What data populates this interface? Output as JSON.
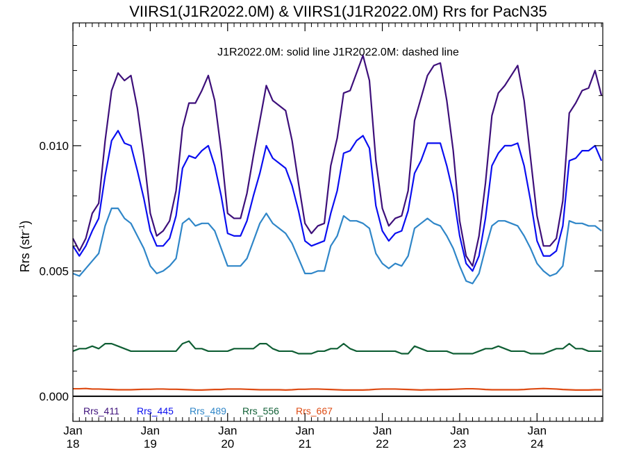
{
  "chart_data": {
    "type": "line",
    "title": "VIIRS1(J1R2022.0M) & VIIRS1(J1R2022.0M)  Rrs for PacN35",
    "subtitle": "J1R2022.0M: solid line   J1R2022.0M: dashed line",
    "ylabel_main": "Rrs (str",
    "ylabel_sup": "-1",
    "ylabel_close": ")",
    "xlabel": "",
    "x_domain": [
      2018.0,
      2024.85
    ],
    "ylim": [
      -0.001,
      0.0149
    ],
    "y_ticks": [
      {
        "value": 0.0,
        "label": "0.000"
      },
      {
        "value": 0.005,
        "label": "0.005"
      },
      {
        "value": 0.01,
        "label": "0.010"
      }
    ],
    "y_minor_step": 0.001,
    "x_ticks": [
      {
        "value": 2018,
        "month": "Jan",
        "year": "18"
      },
      {
        "value": 2019,
        "month": "Jan",
        "year": "19"
      },
      {
        "value": 2020,
        "month": "Jan",
        "year": "20"
      },
      {
        "value": 2021,
        "month": "Jan",
        "year": "21"
      },
      {
        "value": 2022,
        "month": "Jan",
        "year": "22"
      },
      {
        "value": 2023,
        "month": "Jan",
        "year": "23"
      },
      {
        "value": 2024,
        "month": "Jan",
        "year": "24"
      }
    ],
    "x_minor_step_months": 1,
    "zero_line": true,
    "grid": false,
    "legend_position": "bottom-left",
    "x_start": "2018-01",
    "x_step": "1 month",
    "series": [
      {
        "name": "Rrs_411",
        "color": "#3d0f7a",
        "values": [
          0.0063,
          0.0058,
          0.0063,
          0.0073,
          0.0077,
          0.0102,
          0.0122,
          0.0129,
          0.0126,
          0.0128,
          0.0115,
          0.0096,
          0.0073,
          0.0064,
          0.0066,
          0.007,
          0.0082,
          0.0107,
          0.0117,
          0.0117,
          0.0122,
          0.0128,
          0.0118,
          0.0098,
          0.0073,
          0.0071,
          0.0071,
          0.0081,
          0.0096,
          0.011,
          0.0124,
          0.0118,
          0.0116,
          0.0114,
          0.0102,
          0.0085,
          0.0069,
          0.0065,
          0.0068,
          0.0069,
          0.0092,
          0.0103,
          0.0121,
          0.0122,
          0.0129,
          0.0136,
          0.0126,
          0.0094,
          0.0075,
          0.0068,
          0.0071,
          0.0072,
          0.0082,
          0.011,
          0.0119,
          0.0128,
          0.0132,
          0.0133,
          0.0118,
          0.0098,
          0.007,
          0.0056,
          0.0052,
          0.0064,
          0.0085,
          0.0112,
          0.0121,
          0.0124,
          0.0128,
          0.0132,
          0.0118,
          0.0095,
          0.0072,
          0.006,
          0.006,
          0.0063,
          0.0078,
          0.0113,
          0.0117,
          0.0122,
          0.0123,
          0.013,
          0.012
        ]
      },
      {
        "name": "Rrs_445",
        "color": "#0a0ef0",
        "values": [
          0.006,
          0.0056,
          0.006,
          0.0066,
          0.0071,
          0.0088,
          0.0102,
          0.0106,
          0.0101,
          0.01,
          0.009,
          0.0079,
          0.0066,
          0.006,
          0.006,
          0.0063,
          0.0072,
          0.0091,
          0.0096,
          0.0095,
          0.0098,
          0.01,
          0.0092,
          0.008,
          0.0065,
          0.0064,
          0.0064,
          0.007,
          0.008,
          0.0089,
          0.01,
          0.0095,
          0.0093,
          0.0091,
          0.0084,
          0.0074,
          0.0062,
          0.006,
          0.0061,
          0.0062,
          0.0073,
          0.0082,
          0.0097,
          0.0098,
          0.0102,
          0.0104,
          0.0099,
          0.0076,
          0.0066,
          0.0062,
          0.0065,
          0.0066,
          0.0074,
          0.0089,
          0.0094,
          0.0101,
          0.0101,
          0.0101,
          0.0092,
          0.0081,
          0.0064,
          0.0053,
          0.005,
          0.0056,
          0.0071,
          0.0092,
          0.0097,
          0.01,
          0.01,
          0.0101,
          0.0092,
          0.0078,
          0.0062,
          0.0056,
          0.0056,
          0.0058,
          0.0068,
          0.0094,
          0.0095,
          0.0098,
          0.0098,
          0.01,
          0.0094
        ]
      },
      {
        "name": "Rrs_489",
        "color": "#2f86c8",
        "values": [
          0.0049,
          0.0048,
          0.0051,
          0.0054,
          0.0057,
          0.0068,
          0.0075,
          0.0075,
          0.0071,
          0.0069,
          0.0064,
          0.0059,
          0.0052,
          0.0049,
          0.005,
          0.0052,
          0.0055,
          0.0069,
          0.0071,
          0.0068,
          0.0069,
          0.0069,
          0.0066,
          0.0059,
          0.0052,
          0.0052,
          0.0052,
          0.0055,
          0.0062,
          0.0069,
          0.0073,
          0.0069,
          0.0067,
          0.0065,
          0.0061,
          0.0055,
          0.0049,
          0.0049,
          0.005,
          0.005,
          0.006,
          0.0064,
          0.0072,
          0.007,
          0.007,
          0.0069,
          0.0067,
          0.0057,
          0.0053,
          0.0051,
          0.0053,
          0.0052,
          0.0056,
          0.0067,
          0.0069,
          0.0071,
          0.0069,
          0.0068,
          0.0064,
          0.0059,
          0.0052,
          0.0046,
          0.0045,
          0.0049,
          0.0059,
          0.0068,
          0.007,
          0.007,
          0.0069,
          0.0068,
          0.0064,
          0.0059,
          0.0053,
          0.005,
          0.0048,
          0.0049,
          0.0052,
          0.007,
          0.0069,
          0.0069,
          0.0068,
          0.0068,
          0.0066
        ]
      },
      {
        "name": "Rrs_556",
        "color": "#0f5e34",
        "values": [
          0.0018,
          0.0019,
          0.0019,
          0.002,
          0.0019,
          0.0021,
          0.0021,
          0.002,
          0.0019,
          0.0018,
          0.0018,
          0.0018,
          0.0018,
          0.0018,
          0.0018,
          0.0018,
          0.0018,
          0.0021,
          0.0022,
          0.0019,
          0.0019,
          0.0018,
          0.0018,
          0.0018,
          0.0018,
          0.0019,
          0.0019,
          0.0019,
          0.0019,
          0.0021,
          0.0021,
          0.0019,
          0.0018,
          0.0018,
          0.0018,
          0.0017,
          0.0017,
          0.0017,
          0.0018,
          0.0018,
          0.0019,
          0.0019,
          0.0021,
          0.0019,
          0.0018,
          0.0018,
          0.0018,
          0.0018,
          0.0018,
          0.0018,
          0.0018,
          0.0017,
          0.0017,
          0.002,
          0.0019,
          0.0018,
          0.0018,
          0.0018,
          0.0018,
          0.0017,
          0.0017,
          0.0017,
          0.0017,
          0.0018,
          0.0019,
          0.0019,
          0.002,
          0.0019,
          0.0018,
          0.0018,
          0.0018,
          0.0017,
          0.0017,
          0.0017,
          0.0018,
          0.0019,
          0.0019,
          0.0021,
          0.0019,
          0.0019,
          0.0018,
          0.0018,
          0.0018
        ]
      },
      {
        "name": "Rrs_667",
        "color": "#dd4a12",
        "values": [
          0.0003,
          0.0003,
          0.00031,
          0.00029,
          0.00029,
          0.00028,
          0.00027,
          0.00026,
          0.00026,
          0.00026,
          0.00027,
          0.00028,
          0.00028,
          0.00029,
          0.00029,
          0.00028,
          0.00028,
          0.00027,
          0.00026,
          0.00025,
          0.00025,
          0.00026,
          0.00027,
          0.00027,
          0.00029,
          0.00029,
          0.00029,
          0.00028,
          0.00027,
          0.00026,
          0.00026,
          0.00026,
          0.00026,
          0.00025,
          0.00026,
          0.00028,
          0.00028,
          0.00029,
          0.00029,
          0.00028,
          0.00027,
          0.00026,
          0.00025,
          0.00025,
          0.00025,
          0.00025,
          0.00026,
          0.00028,
          0.00029,
          0.00029,
          0.00029,
          0.00028,
          0.00027,
          0.00026,
          0.00025,
          0.00026,
          0.00026,
          0.00027,
          0.00027,
          0.00028,
          0.00029,
          0.0003,
          0.0003,
          0.00029,
          0.00027,
          0.00026,
          0.00026,
          0.00026,
          0.00026,
          0.00026,
          0.00027,
          0.00029,
          0.0003,
          0.00031,
          0.0003,
          0.00029,
          0.00027,
          0.00026,
          0.00025,
          0.00025,
          0.00025,
          0.00026,
          0.00026
        ]
      }
    ]
  }
}
